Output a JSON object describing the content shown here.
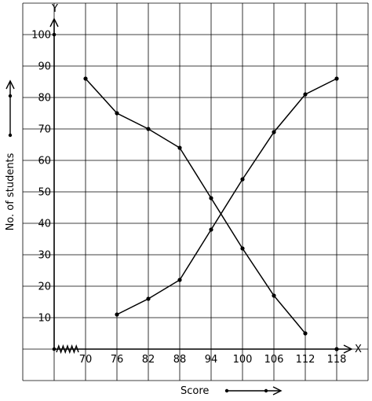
{
  "chart_data": {
    "type": "line",
    "xlabel": "Score",
    "ylabel": "No. of students",
    "x_axis_letter": "X",
    "y_axis_letter": "Y",
    "x_ticks": [
      70,
      76,
      82,
      88,
      94,
      100,
      106,
      112,
      118
    ],
    "y_ticks": [
      10,
      20,
      30,
      40,
      50,
      60,
      70,
      80,
      90,
      100
    ],
    "xlim": [
      58,
      118
    ],
    "ylim": [
      0,
      100
    ],
    "grid": true,
    "axis_break": "x-axis zigzag between 0 and 70",
    "series": [
      {
        "x": [
          70,
          76,
          82,
          88,
          94,
          100,
          106,
          112
        ],
        "y": [
          86,
          75,
          70,
          64,
          48,
          32,
          17,
          5
        ]
      },
      {
        "x": [
          76,
          82,
          88,
          94,
          100,
          106,
          112,
          118
        ],
        "y": [
          11,
          16,
          22,
          38,
          54,
          69,
          81,
          86
        ]
      }
    ],
    "extra_points": [
      {
        "x": 118,
        "y": 0
      }
    ]
  },
  "colors": {
    "grid": "#000000",
    "axis": "#000000",
    "line": "#000000"
  }
}
